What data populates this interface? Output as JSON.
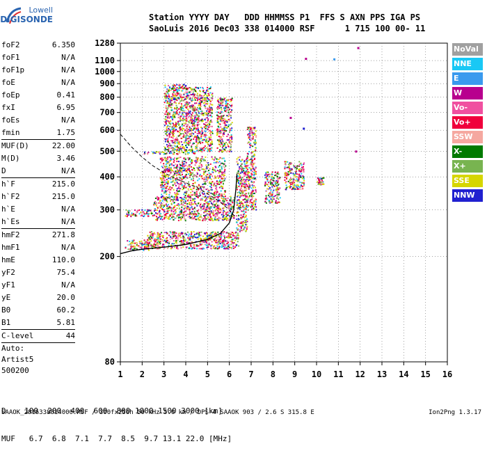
{
  "logo": {
    "line1": "Lowell",
    "line2": "DIGISONDE"
  },
  "header": {
    "line1": "Station YYYY DAY   DDD HHMMSS P1  FFS S AXN PPS IGA PS",
    "line2": "SaoLuis 2016 Dec03 338 014000 RSF      1 715 100 00- 11"
  },
  "params": [
    {
      "name": "foF2",
      "value": "6.350"
    },
    {
      "name": "foF1",
      "value": "N/A"
    },
    {
      "name": "foF1p",
      "value": "N/A"
    },
    {
      "name": "foE",
      "value": "N/A"
    },
    {
      "name": "foEp",
      "value": "0.41"
    },
    {
      "name": "fxI",
      "value": "6.95"
    },
    {
      "name": "foEs",
      "value": "N/A"
    },
    {
      "name": "fmin",
      "value": "1.75"
    },
    {
      "sep": true
    },
    {
      "name": "MUF(D)",
      "value": "22.00"
    },
    {
      "name": "M(D)",
      "value": "3.46"
    },
    {
      "name": "D",
      "value": "N/A"
    },
    {
      "sep": true
    },
    {
      "name": "h`F",
      "value": "215.0"
    },
    {
      "name": "h`F2",
      "value": "215.0"
    },
    {
      "name": "h`E",
      "value": "N/A"
    },
    {
      "name": "h`Es",
      "value": "N/A"
    },
    {
      "sep": true
    },
    {
      "name": "hmF2",
      "value": "271.8"
    },
    {
      "name": "hmF1",
      "value": "N/A"
    },
    {
      "name": "hmE",
      "value": "110.0"
    },
    {
      "name": "yF2",
      "value": "75.4"
    },
    {
      "name": "yF1",
      "value": "N/A"
    },
    {
      "name": "yE",
      "value": "20.0"
    },
    {
      "name": "B0",
      "value": "60.2"
    },
    {
      "name": "B1",
      "value": "5.81"
    },
    {
      "sep": true
    },
    {
      "name": "C-level",
      "value": "44"
    },
    {
      "sep": true
    },
    {
      "text": "Auto:"
    },
    {
      "text": "Artist5"
    },
    {
      "text": "500200"
    }
  ],
  "legend": [
    {
      "label": "NoVal",
      "color": "#a0a0a0"
    },
    {
      "label": "NNE",
      "color": "#19c8f5"
    },
    {
      "label": "E",
      "color": "#3a9aee"
    },
    {
      "label": "W",
      "color": "#b8008e"
    },
    {
      "label": "Vo-",
      "color": "#f050a0"
    },
    {
      "label": "Vo+",
      "color": "#f0003c"
    },
    {
      "label": "SSW",
      "color": "#f5a8a0"
    },
    {
      "label": "X-",
      "color": "#007a00"
    },
    {
      "label": "X+",
      "color": "#78b450"
    },
    {
      "label": "SSE",
      "color": "#d6d600"
    },
    {
      "label": "NNW",
      "color": "#2020d0"
    }
  ],
  "chart_data": {
    "type": "scatter",
    "xlim": [
      1,
      16
    ],
    "x_ticks": [
      "1",
      "2",
      "3",
      "4",
      "5",
      "6",
      "7",
      "8",
      "9",
      "10",
      "11",
      "12",
      "13",
      "14",
      "15",
      "16"
    ],
    "y_scale": "log",
    "ylim": [
      80,
      1280
    ],
    "y_ticks": [
      "80",
      "200",
      "300",
      "400",
      "500",
      "600",
      "700",
      "800",
      "900",
      "1000",
      "1100",
      "1280"
    ],
    "grid": true,
    "traces": [
      {
        "name": "h'F2 trace",
        "x": [
          1.0,
          1.5,
          2.0,
          3.0,
          4.0,
          5.0,
          5.6,
          6.0,
          6.2,
          6.3,
          6.35
        ],
        "y": [
          205,
          210,
          213,
          217,
          222,
          232,
          245,
          268,
          300,
          360,
          410
        ]
      },
      {
        "name": "profile",
        "x": [
          1.0,
          1.5,
          2.0,
          2.5,
          3.0,
          3.5,
          4.0,
          4.5,
          5.0,
          5.5,
          6.0,
          6.3
        ],
        "y": [
          580,
          520,
          475,
          440,
          415,
          395,
          380,
          365,
          345,
          325,
          300,
          280
        ]
      }
    ],
    "clusters": [
      {
        "x": [
          1.2,
          2.3
        ],
        "y": [
          212,
          232
        ]
      },
      {
        "x": [
          2.2,
          6.4
        ],
        "y": [
          215,
          250
        ]
      },
      {
        "x": [
          1.2,
          2.6
        ],
        "y": [
          285,
          302
        ]
      },
      {
        "x": [
          2.5,
          6.2
        ],
        "y": [
          275,
          340
        ]
      },
      {
        "x": [
          3.0,
          4.3
        ],
        "y": [
          420,
          435
        ]
      },
      {
        "x": [
          2.0,
          4.5
        ],
        "y": [
          490,
          500
        ]
      },
      {
        "x": [
          2.8,
          5.8
        ],
        "y": [
          340,
          480
        ]
      },
      {
        "x": [
          3.0,
          4.0
        ],
        "y": [
          500,
          900
        ]
      },
      {
        "x": [
          4.0,
          5.2
        ],
        "y": [
          500,
          880
        ]
      },
      {
        "x": [
          5.4,
          6.1
        ],
        "y": [
          500,
          800
        ]
      },
      {
        "x": [
          6.3,
          6.8
        ],
        "y": [
          250,
          480
        ]
      },
      {
        "x": [
          6.8,
          7.2
        ],
        "y": [
          300,
          620
        ]
      },
      {
        "x": [
          7.6,
          8.3
        ],
        "y": [
          320,
          420
        ]
      },
      {
        "x": [
          8.5,
          9.4
        ],
        "y": [
          360,
          460
        ]
      },
      {
        "x": [
          10.0,
          10.3
        ],
        "y": [
          375,
          400
        ]
      }
    ],
    "isolated_points": [
      {
        "x": 11.9,
        "y": 1230,
        "color": "#b8008e"
      },
      {
        "x": 9.5,
        "y": 1120,
        "color": "#b8008e"
      },
      {
        "x": 10.8,
        "y": 1115,
        "color": "#3a9aee"
      },
      {
        "x": 9.4,
        "y": 610,
        "color": "#2020d0"
      },
      {
        "x": 11.8,
        "y": 500,
        "color": "#b8008e"
      },
      {
        "x": 8.8,
        "y": 670,
        "color": "#b8008e"
      }
    ]
  },
  "bottom": {
    "d_line": "D    100  200  400  600  800 1000 1500 3000 [km]",
    "muf_line": "MUF   6.7  6.8  7.1  7.7  8.5  9.7 13.1 22.0 [MHz]"
  },
  "footer": {
    "text": "SAAOK_2016338014000.RSF / 300fx256h 50 kHz 5.0 km / DPS-4 SAAOK 903 / 2.6 S 315.8 E",
    "version": "Ion2Png 1.3.17"
  }
}
